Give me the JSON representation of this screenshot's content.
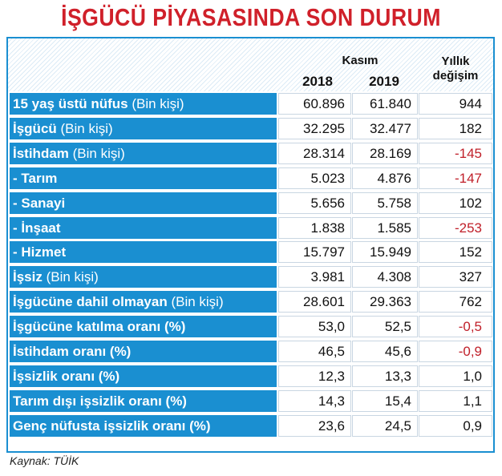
{
  "title": "İŞGÜCÜ PİYASASINDA SON DURUM",
  "header": {
    "kasim": "Kasım",
    "year1": "2018",
    "year2": "2019",
    "yillik1": "Yıllık",
    "yillik2": "değişim"
  },
  "rows": [
    {
      "bold": "15 yaş üstü nüfus",
      "rest": " (Bin kişi)",
      "v2018": "60.896",
      "v2019": "61.840",
      "change": "944"
    },
    {
      "bold": "İşgücü",
      "rest": " (Bin kişi)",
      "v2018": "32.295",
      "v2019": "32.477",
      "change": "182"
    },
    {
      "bold": "İstihdam",
      "rest": " (Bin kişi)",
      "v2018": "28.314",
      "v2019": "28.169",
      "change": "-145"
    },
    {
      "bold": "- Tarım",
      "rest": "",
      "v2018": "5.023",
      "v2019": "4.876",
      "change": "-147"
    },
    {
      "bold": "- Sanayi",
      "rest": "",
      "v2018": "5.656",
      "v2019": "5.758",
      "change": "102"
    },
    {
      "bold": "- İnşaat",
      "rest": "",
      "v2018": "1.838",
      "v2019": "1.585",
      "change": "-253"
    },
    {
      "bold": "- Hizmet",
      "rest": "",
      "v2018": "15.797",
      "v2019": "15.949",
      "change": "152"
    },
    {
      "bold": "İşsiz",
      "rest": " (Bin kişi)",
      "v2018": "3.981",
      "v2019": "4.308",
      "change": "327"
    },
    {
      "bold": "İşgücüne dahil olmayan",
      "rest": " (Bin kişi)",
      "v2018": "28.601",
      "v2019": "29.363",
      "change": "762"
    },
    {
      "bold": "İşgücüne katılma oranı (%)",
      "rest": "",
      "v2018": "53,0",
      "v2019": "52,5",
      "change": "-0,5"
    },
    {
      "bold": "İstihdam oranı (%)",
      "rest": "",
      "v2018": "46,5",
      "v2019": "45,6",
      "change": "-0,9"
    },
    {
      "bold": "İşsizlik oranı (%)",
      "rest": "",
      "v2018": "12,3",
      "v2019": "13,3",
      "change": "1,0"
    },
    {
      "bold": "Tarım dışı işsizlik oranı (%)",
      "rest": "",
      "v2018": "14,3",
      "v2019": "15,4",
      "change": "1,1"
    },
    {
      "bold": "Genç nüfusta işsizlik oranı (%)",
      "rest": "",
      "v2018": "23,6",
      "v2019": "24,5",
      "change": "0,9"
    }
  ],
  "source": "Kaynak: TÜİK",
  "colors": {
    "accent": "#1a8fd1",
    "title": "#d0202a",
    "negative": "#c0202a"
  }
}
